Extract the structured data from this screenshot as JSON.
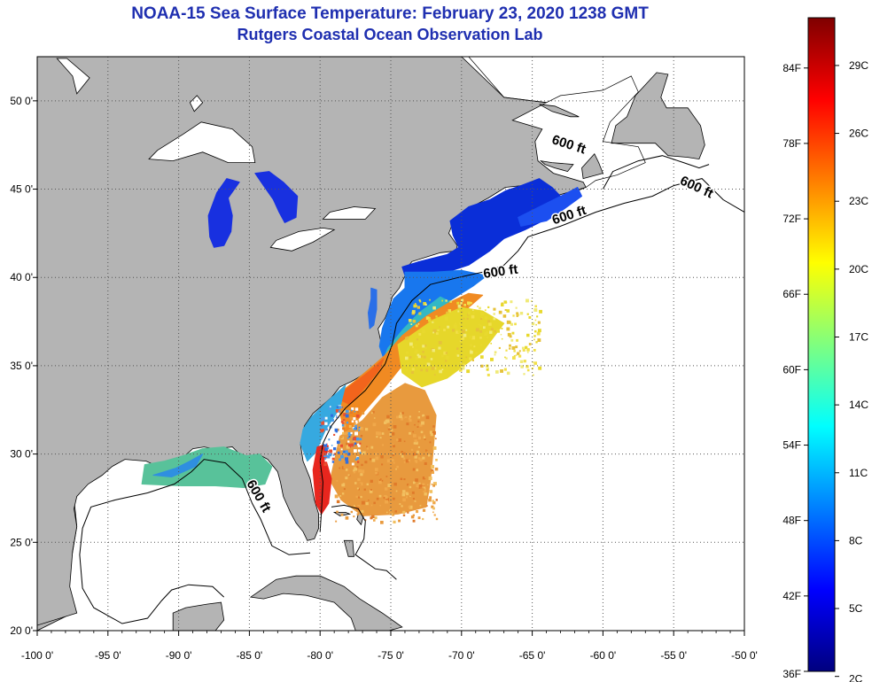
{
  "title": "NOAA-15 Sea Surface Temperature:  February 23, 2020 1238 GMT",
  "subtitle": "Rutgers Coastal Ocean Observation Lab",
  "map": {
    "lon_range": [
      -100,
      -50
    ],
    "lat_range": [
      20,
      52.5
    ],
    "lon_ticks": [
      {
        "value": -100,
        "label": "-100 0'"
      },
      {
        "value": -95,
        "label": "-95 0'"
      },
      {
        "value": -90,
        "label": "-90 0'"
      },
      {
        "value": -85,
        "label": "-85 0'"
      },
      {
        "value": -80,
        "label": "-80 0'"
      },
      {
        "value": -75,
        "label": "-75 0'"
      },
      {
        "value": -70,
        "label": "-70 0'"
      },
      {
        "value": -65,
        "label": "-65 0'"
      },
      {
        "value": -60,
        "label": "-60 0'"
      },
      {
        "value": -55,
        "label": "-55 0'"
      },
      {
        "value": -50,
        "label": "-50 0'"
      }
    ],
    "lat_ticks": [
      {
        "value": 20,
        "label": "20 0'"
      },
      {
        "value": 25,
        "label": "25 0'"
      },
      {
        "value": 30,
        "label": "30 0'"
      },
      {
        "value": 35,
        "label": "35 0'"
      },
      {
        "value": 40,
        "label": "40 0'"
      },
      {
        "value": 45,
        "label": "45 0'"
      },
      {
        "value": 50,
        "label": "50 0'"
      }
    ],
    "isobath_labels": [
      {
        "text": "600 ft",
        "lon": -62.5,
        "lat": 47.3,
        "angle": 18
      },
      {
        "text": "600 ft",
        "lon": -53.5,
        "lat": 44.9,
        "angle": 25
      },
      {
        "text": "600 ft",
        "lon": -62.3,
        "lat": 43.3,
        "angle": -18
      },
      {
        "text": "600 ft",
        "lon": -67.2,
        "lat": 40.1,
        "angle": -8
      },
      {
        "text": "600 ft",
        "lon": -84.6,
        "lat": 27.5,
        "angle": 60
      }
    ],
    "colors": {
      "land": "#b4b4b4",
      "water": "#ffffff",
      "grid": "#555555"
    }
  },
  "colorbar": {
    "min_f": 36,
    "max_f": 88,
    "f_labels": [
      {
        "value": 36,
        "label": "36F"
      },
      {
        "value": 42,
        "label": "42F"
      },
      {
        "value": 48,
        "label": "48F"
      },
      {
        "value": 54,
        "label": "54F"
      },
      {
        "value": 60,
        "label": "60F"
      },
      {
        "value": 66,
        "label": "66F"
      },
      {
        "value": 72,
        "label": "72F"
      },
      {
        "value": 78,
        "label": "78F"
      },
      {
        "value": 84,
        "label": "84F"
      }
    ],
    "c_labels": [
      {
        "value": 2,
        "label": "2C"
      },
      {
        "value": 5,
        "label": "5C"
      },
      {
        "value": 8,
        "label": "8C"
      },
      {
        "value": 11,
        "label": "11C"
      },
      {
        "value": 14,
        "label": "14C"
      },
      {
        "value": 17,
        "label": "17C"
      },
      {
        "value": 20,
        "label": "20C"
      },
      {
        "value": 23,
        "label": "23C"
      },
      {
        "value": 26,
        "label": "26C"
      },
      {
        "value": 29,
        "label": "29C"
      }
    ],
    "stops": [
      "#00007f",
      "#0000ff",
      "#007fff",
      "#00ffff",
      "#7fff7f",
      "#ffff00",
      "#ff7f00",
      "#ff0000",
      "#7f0000"
    ]
  },
  "sst_patches": [
    {
      "name": "gulf-of-maine",
      "color": "#0a2ed8",
      "temp_f": 40,
      "points": [
        [
          -74.2,
          40.6
        ],
        [
          -73,
          40.9
        ],
        [
          -71,
          41.3
        ],
        [
          -70.2,
          41.7
        ],
        [
          -70.6,
          42.4
        ],
        [
          -70.8,
          43.2
        ],
        [
          -69.5,
          44
        ],
        [
          -68,
          44.4
        ],
        [
          -66.9,
          44.9
        ],
        [
          -65.8,
          45.2
        ],
        [
          -64.5,
          45.6
        ],
        [
          -63.6,
          45.1
        ],
        [
          -63,
          44.6
        ],
        [
          -64,
          43.3
        ],
        [
          -65.5,
          42.7
        ],
        [
          -67,
          42.2
        ],
        [
          -68,
          41.5
        ],
        [
          -69.5,
          40.7
        ],
        [
          -71,
          40.3
        ],
        [
          -73,
          39.9
        ],
        [
          -74,
          40.1
        ]
      ]
    },
    {
      "name": "scotian-shelf",
      "color": "#1c4ff0",
      "temp_f": 42,
      "points": [
        [
          -66,
          43.4
        ],
        [
          -64,
          44.2
        ],
        [
          -62.5,
          44.8
        ],
        [
          -61.8,
          45.1
        ],
        [
          -61.5,
          44.6
        ],
        [
          -62.7,
          43.9
        ],
        [
          -64,
          43.2
        ],
        [
          -65.8,
          42.9
        ]
      ]
    },
    {
      "name": "mid-atlantic-shelf",
      "color": "#1877ee",
      "temp_f": 46,
      "points": [
        [
          -74,
          40.3
        ],
        [
          -74,
          39.4
        ],
        [
          -74.8,
          38.8
        ],
        [
          -75.2,
          38
        ],
        [
          -75.6,
          37.1
        ],
        [
          -75.8,
          36.1
        ],
        [
          -75.5,
          35.4
        ],
        [
          -74.8,
          35.6
        ],
        [
          -73.5,
          36.6
        ],
        [
          -72.2,
          37.8
        ],
        [
          -70.8,
          38.7
        ],
        [
          -69.2,
          39.5
        ],
        [
          -68.2,
          40.1
        ],
        [
          -70,
          40.4
        ],
        [
          -72,
          40.3
        ]
      ]
    },
    {
      "name": "shelf-break-warm",
      "color": "#33b8c4",
      "temp_f": 56,
      "points": [
        [
          -75.5,
          35.4
        ],
        [
          -74.8,
          35.6
        ],
        [
          -73.5,
          36.6
        ],
        [
          -72.5,
          37.4
        ],
        [
          -71.5,
          38
        ],
        [
          -70.5,
          38.5
        ],
        [
          -71.5,
          38.9
        ],
        [
          -73,
          38
        ],
        [
          -74.2,
          37
        ],
        [
          -75.2,
          36
        ]
      ]
    },
    {
      "name": "gulf-stream-orange",
      "color": "#f08a22",
      "temp_f": 75,
      "points": [
        [
          -78.9,
          33.3
        ],
        [
          -77.6,
          34.1
        ],
        [
          -76.4,
          34.9
        ],
        [
          -75.4,
          35.6
        ],
        [
          -74.2,
          36.7
        ],
        [
          -72.5,
          37.8
        ],
        [
          -70.8,
          38.6
        ],
        [
          -69.5,
          39.1
        ],
        [
          -68.5,
          39
        ],
        [
          -70.5,
          37.6
        ],
        [
          -72.5,
          36.4
        ],
        [
          -74.2,
          35
        ],
        [
          -75.8,
          33.4
        ],
        [
          -77,
          32.3
        ],
        [
          -78.2,
          31
        ]
      ]
    },
    {
      "name": "gulf-stream-core",
      "color": "#f2641c",
      "temp_f": 78,
      "points": [
        [
          -78.9,
          33.2
        ],
        [
          -77.8,
          33.9
        ],
        [
          -76.5,
          34.7
        ],
        [
          -75.5,
          35.4
        ],
        [
          -75.8,
          34.8
        ],
        [
          -76.8,
          33.8
        ],
        [
          -77.9,
          32.8
        ]
      ]
    },
    {
      "name": "offshore-yellow",
      "color": "#e6d72a",
      "temp_f": 68,
      "points": [
        [
          -74.5,
          36.2
        ],
        [
          -72,
          37.6
        ],
        [
          -70,
          38.3
        ],
        [
          -68.5,
          38.1
        ],
        [
          -67,
          37.4
        ],
        [
          -68.5,
          35.8
        ],
        [
          -71,
          34.3
        ],
        [
          -72.8,
          33.8
        ],
        [
          -74.2,
          34.6
        ]
      ]
    },
    {
      "name": "sargasso-orange",
      "color": "#e89a3e",
      "temp_f": 73,
      "points": [
        [
          -78.6,
          31
        ],
        [
          -77,
          31.9
        ],
        [
          -75.6,
          33.2
        ],
        [
          -74,
          34
        ],
        [
          -72.6,
          33.6
        ],
        [
          -71.8,
          32.2
        ],
        [
          -72,
          30.2
        ],
        [
          -72.2,
          28.5
        ],
        [
          -72.5,
          27
        ],
        [
          -74.5,
          26.6
        ],
        [
          -77,
          26.5
        ],
        [
          -78.5,
          27.4
        ],
        [
          -79.3,
          28.5
        ]
      ]
    },
    {
      "name": "southeast-shelf",
      "color": "#36a9e0",
      "temp_f": 55,
      "points": [
        [
          -81.4,
          30.6
        ],
        [
          -81.2,
          31.4
        ],
        [
          -80.6,
          32.1
        ],
        [
          -79.6,
          32.9
        ],
        [
          -78.9,
          33.4
        ],
        [
          -78.2,
          33.9
        ],
        [
          -78.6,
          32.6
        ],
        [
          -79.6,
          31.4
        ],
        [
          -80.3,
          30.1
        ],
        [
          -80.9,
          29.6
        ]
      ]
    },
    {
      "name": "florida-current",
      "color": "#e8261e",
      "temp_f": 82,
      "points": [
        [
          -80.3,
          27.2
        ],
        [
          -79.9,
          26.6
        ],
        [
          -79.4,
          27.2
        ],
        [
          -79.2,
          28.6
        ],
        [
          -79.6,
          29.7
        ],
        [
          -79.4,
          30.6
        ],
        [
          -80.2,
          30.4
        ],
        [
          -80.5,
          29.1
        ]
      ]
    },
    {
      "name": "gulf-of-mexico-warm",
      "color": "#58c29a",
      "temp_f": 62,
      "points": [
        [
          -92.6,
          28.3
        ],
        [
          -92.4,
          29.4
        ],
        [
          -91,
          29.6
        ],
        [
          -89.7,
          29.9
        ],
        [
          -88.3,
          30.3
        ],
        [
          -86.8,
          30.4
        ],
        [
          -85.2,
          29.9
        ],
        [
          -84.3,
          30
        ],
        [
          -83.4,
          29.3
        ],
        [
          -83.9,
          28.3
        ],
        [
          -85.4,
          28.1
        ],
        [
          -87.4,
          28.2
        ],
        [
          -89.8,
          28.2
        ]
      ]
    },
    {
      "name": "gulf-of-mexico-cool",
      "color": "#2f8fe0",
      "temp_f": 52,
      "points": [
        [
          -91.8,
          28.8
        ],
        [
          -90.2,
          29.2
        ],
        [
          -89.2,
          29.6
        ],
        [
          -88.3,
          30
        ],
        [
          -88.8,
          29.3
        ],
        [
          -90.5,
          28.7
        ]
      ]
    },
    {
      "name": "lake-michigan",
      "color": "#1830e0",
      "temp_f": 37,
      "points": [
        [
          -87.5,
          41.7
        ],
        [
          -86.8,
          41.8
        ],
        [
          -86.3,
          42.6
        ],
        [
          -86.2,
          43.5
        ],
        [
          -86.5,
          44.5
        ],
        [
          -85.7,
          45.4
        ],
        [
          -86.6,
          45.6
        ],
        [
          -87.3,
          44.8
        ],
        [
          -87.9,
          43.5
        ],
        [
          -87.8,
          42.3
        ]
      ]
    },
    {
      "name": "lake-huron",
      "color": "#1830e0",
      "temp_f": 37,
      "points": [
        [
          -82.5,
          43.1
        ],
        [
          -81.7,
          43.4
        ],
        [
          -81.6,
          44.6
        ],
        [
          -82.6,
          45.4
        ],
        [
          -83.6,
          46
        ],
        [
          -84.6,
          45.9
        ],
        [
          -84,
          45.2
        ],
        [
          -83.3,
          44.4
        ],
        [
          -82.9,
          43.7
        ]
      ]
    },
    {
      "name": "chesapeake-bay",
      "color": "#2a6fe8",
      "temp_f": 44,
      "points": [
        [
          -76.4,
          39.4
        ],
        [
          -76,
          39.3
        ],
        [
          -76,
          38.2
        ],
        [
          -76.2,
          37.3
        ],
        [
          -76.5,
          37.1
        ],
        [
          -76.6,
          38
        ],
        [
          -76.4,
          38.8
        ]
      ]
    }
  ]
}
